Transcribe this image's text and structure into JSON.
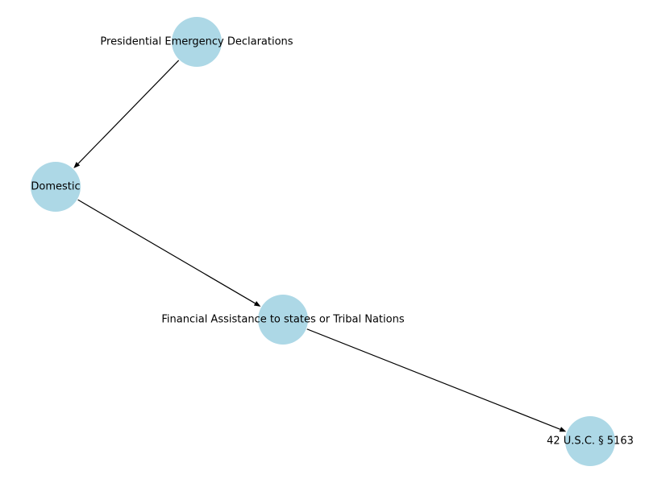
{
  "graph": {
    "node_color": "#add8e6",
    "edge_color": "#000000",
    "nodes": [
      {
        "id": "n1",
        "label": "Presidential Emergency Declarations"
      },
      {
        "id": "n2",
        "label": "Domestic"
      },
      {
        "id": "n3",
        "label": "Financial Assistance to states or Tribal Nations"
      },
      {
        "id": "n4",
        "label": "42 U.S.C. §  5163"
      }
    ],
    "edges": [
      {
        "from": "n1",
        "to": "n2"
      },
      {
        "from": "n2",
        "to": "n3"
      },
      {
        "from": "n3",
        "to": "n4"
      }
    ]
  }
}
